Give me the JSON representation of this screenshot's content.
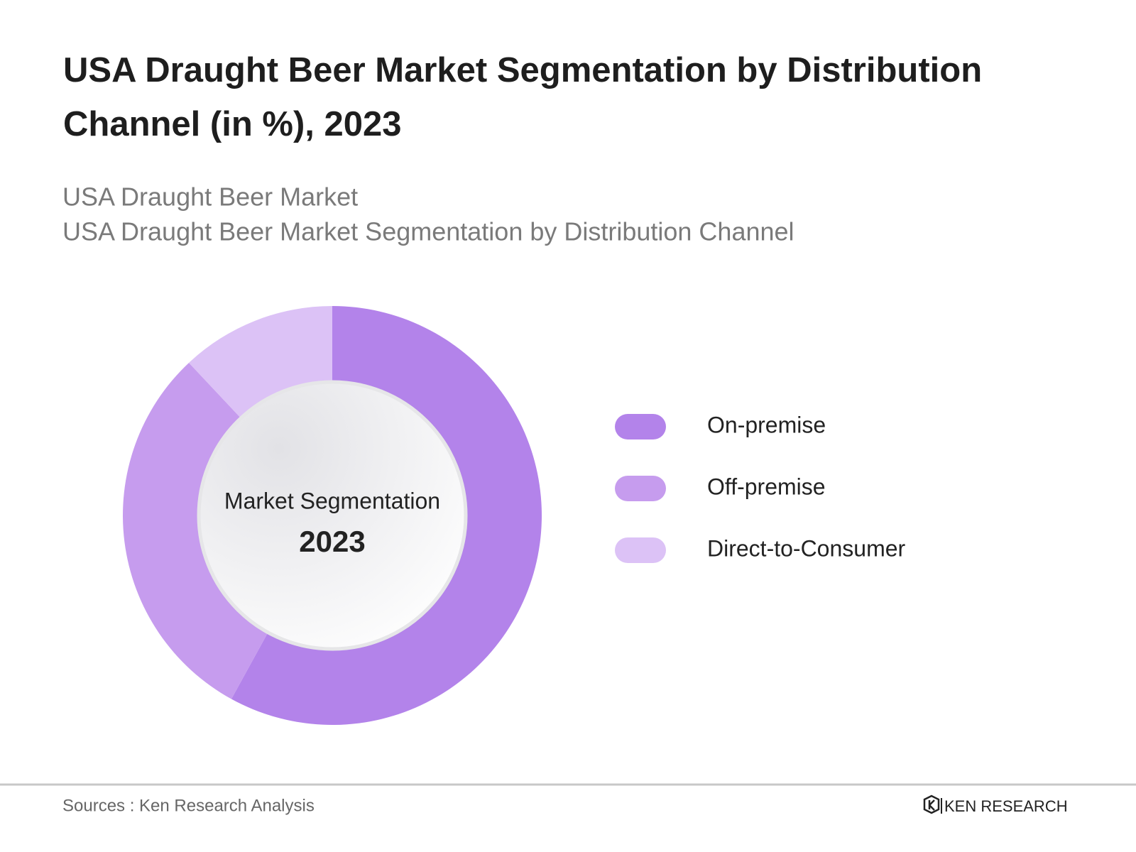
{
  "chart_data": {
    "type": "donut",
    "title": "USA Draught Beer Market Segmentation by Distribution Channel (in %), 2023",
    "subtitle_lines": [
      "USA Draught Beer Market",
      "USA Draught Beer Market Segmentation by Distribution Channel"
    ],
    "center_label": "Market Segmentation",
    "center_year": "2023",
    "categories": [
      "On-premise",
      "Off-premise",
      "Direct-to-Consumer"
    ],
    "values": [
      58,
      30,
      12
    ],
    "colors": [
      "#b383ea",
      "#c69cee",
      "#dcc2f6"
    ],
    "source": "Sources : Ken Research Analysis",
    "brand": "KEN RESEARCH"
  }
}
